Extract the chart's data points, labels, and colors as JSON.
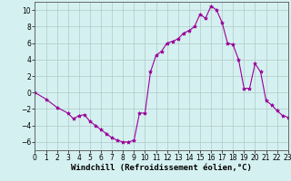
{
  "x": [
    0,
    1,
    2,
    3,
    3.5,
    4,
    4.5,
    5,
    5.5,
    6,
    6.5,
    7,
    7.5,
    8,
    8.5,
    9,
    9.5,
    10,
    10.5,
    11,
    11.5,
    12,
    12.5,
    13,
    13.5,
    14,
    14.5,
    15,
    15.5,
    16,
    16.5,
    17,
    17.5,
    18,
    18.5,
    19,
    19.5,
    20,
    20.5,
    21,
    21.5,
    22,
    22.5,
    23
  ],
  "y": [
    0,
    -0.8,
    -1.8,
    -2.5,
    -3.2,
    -2.8,
    -2.7,
    -3.5,
    -4.0,
    -4.5,
    -5.0,
    -5.5,
    -5.8,
    -6.0,
    -6.0,
    -5.8,
    -2.5,
    -2.5,
    2.5,
    4.5,
    5.0,
    6.0,
    6.2,
    6.5,
    7.2,
    7.5,
    8.0,
    9.5,
    9.0,
    10.5,
    10.0,
    8.5,
    6.0,
    5.8,
    4.0,
    0.5,
    0.5,
    3.5,
    2.5,
    -1.0,
    -1.5,
    -2.2,
    -2.8,
    -3.0
  ],
  "line_color": "#990099",
  "marker": "*",
  "marker_size": 3,
  "bg_color": "#d5f0f0",
  "grid_color": "#b0c8c8",
  "xlabel": "Windchill (Refroidissement éolien,°C)",
  "xlabel_fontsize": 6.5,
  "tick_fontsize": 5.5,
  "ylim": [
    -7,
    11
  ],
  "xlim": [
    0,
    23
  ],
  "yticks": [
    -6,
    -4,
    -2,
    0,
    2,
    4,
    6,
    8,
    10
  ],
  "xticks": [
    0,
    1,
    2,
    3,
    4,
    5,
    6,
    7,
    8,
    9,
    10,
    11,
    12,
    13,
    14,
    15,
    16,
    17,
    18,
    19,
    20,
    21,
    22,
    23
  ]
}
